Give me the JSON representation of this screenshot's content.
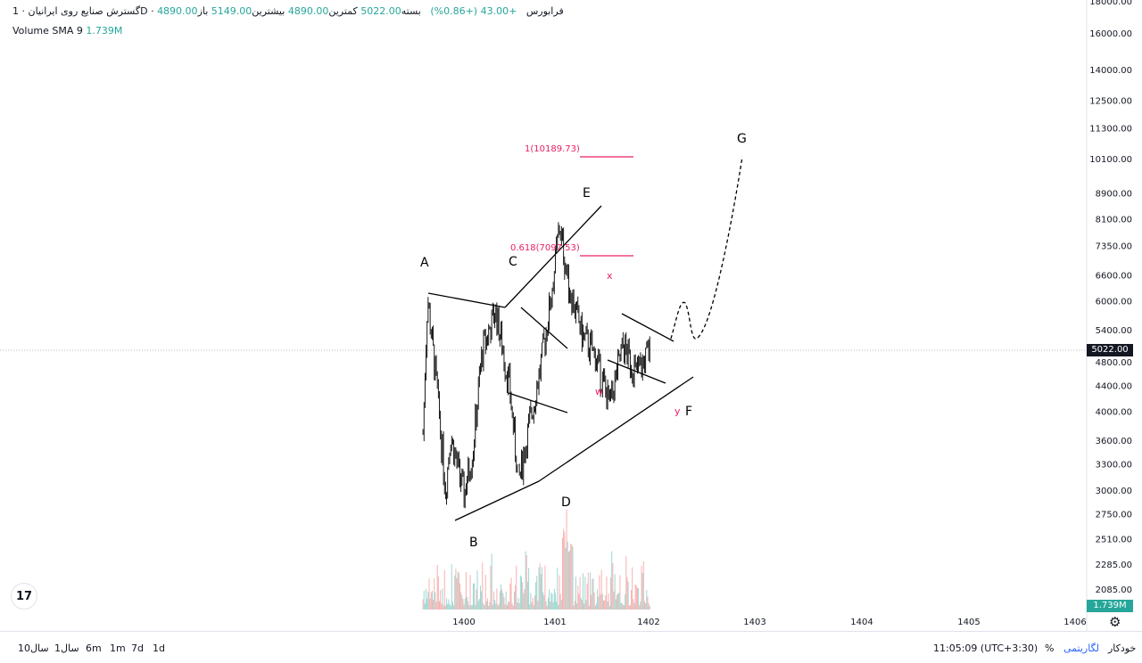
{
  "legend": {
    "symbol": "گسترش صنایع روی ایرانیان",
    "interval": "1D",
    "exchange": "فرابورس",
    "open_label": "باز",
    "open": "4890.00",
    "high_label": "بیشترین",
    "high": "5149.00",
    "low_label": "کمترین",
    "low": "4890.00",
    "close_label": "بسته",
    "close": "5022.00",
    "change": "+43.00 (+0.86%)",
    "volume_label": "Volume SMA 9",
    "volume_value": "1.739M"
  },
  "price_tag": "5022.00",
  "volume_tag": "1.739M",
  "chart_data": {
    "type": "candlestick",
    "y_scale": "log",
    "y_ticks": [
      "18000.00",
      "16000.00",
      "14000.00",
      "12500.00",
      "11300.00",
      "10100.00",
      "8900.00",
      "8100.00",
      "7350.00",
      "6600.00",
      "6000.00",
      "5400.00",
      "4800.00",
      "4400.00",
      "4000.00",
      "3600.00",
      "3300.00",
      "3000.00",
      "2750.00",
      "2510.00",
      "2285.00",
      "2085.00"
    ],
    "x_ticks": [
      "1400",
      "1401",
      "1402",
      "1403",
      "1404",
      "1405",
      "1406"
    ],
    "last_price": 5022.0,
    "approx_path": [
      {
        "x": "1399.55",
        "y": 3700
      },
      {
        "x": "1399.6",
        "y": 6100
      },
      {
        "x": "1399.7",
        "y": 4400
      },
      {
        "x": "1399.8",
        "y": 3000
      },
      {
        "x": "1399.85",
        "y": 3700
      },
      {
        "x": "1400.0",
        "y": 2950
      },
      {
        "x": "1400.1",
        "y": 3500
      },
      {
        "x": "1400.2",
        "y": 5000
      },
      {
        "x": "1400.35",
        "y": 5800
      },
      {
        "x": "1400.5",
        "y": 4400
      },
      {
        "x": "1400.6",
        "y": 3100
      },
      {
        "x": "1400.7",
        "y": 3700
      },
      {
        "x": "1400.85",
        "y": 4800
      },
      {
        "x": "1400.95",
        "y": 6000
      },
      {
        "x": "1401.05",
        "y": 7900
      },
      {
        "x": "1401.15",
        "y": 6400
      },
      {
        "x": "1401.3",
        "y": 5300
      },
      {
        "x": "1401.45",
        "y": 4900
      },
      {
        "x": "1401.6",
        "y": 4100
      },
      {
        "x": "1401.75",
        "y": 5100
      },
      {
        "x": "1401.9",
        "y": 4600
      },
      {
        "x": "1402.05",
        "y": 5022
      }
    ],
    "annotations": {
      "wave_labels": [
        "A",
        "B",
        "C",
        "D",
        "E",
        "F",
        "G"
      ],
      "sub_labels": [
        "x",
        "w",
        "y"
      ],
      "fib_levels": [
        {
          "label": "1(10189.73)",
          "value": 10189.73
        },
        {
          "label": "0.618(7097.53)",
          "value": 7097.53
        }
      ]
    }
  },
  "bottom_bar": {
    "timeframes": [
      "10سال",
      "1سال",
      "6m",
      "1m",
      "7d",
      "1d"
    ],
    "clock": "11:05:09 (UTC+3:30)",
    "percent": "%",
    "log": "لگاریتمی",
    "auto": "خودکار"
  },
  "colors": {
    "up": "#26a69a",
    "down": "#ef5350",
    "fib": "#e91e63",
    "line": "#000000"
  }
}
